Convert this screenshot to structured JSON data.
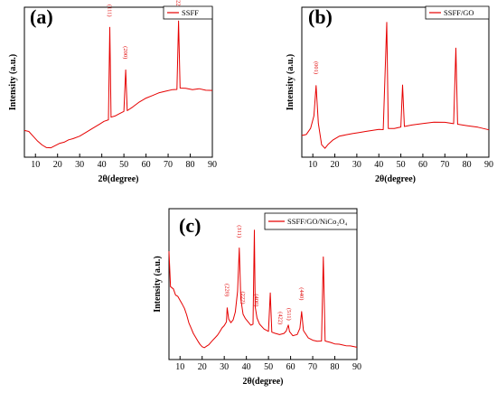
{
  "chart_data": [
    {
      "type": "line",
      "panel": "(a)",
      "xlabel": "2θ(degree)",
      "ylabel": "Intensity (a.u.)",
      "xlim": [
        5,
        90
      ],
      "xticks": [
        10,
        20,
        30,
        40,
        50,
        60,
        70,
        80,
        90
      ],
      "legend": "top-right",
      "series": [
        {
          "name": "SSFF",
          "color": "#e60000",
          "points": [
            [
              5,
              0.14
            ],
            [
              7,
              0.13
            ],
            [
              9,
              0.09
            ],
            [
              11,
              0.05
            ],
            [
              13,
              0.02
            ],
            [
              15,
              0.0
            ],
            [
              17,
              0.0
            ],
            [
              19,
              0.02
            ],
            [
              21,
              0.04
            ],
            [
              23,
              0.05
            ],
            [
              25,
              0.07
            ],
            [
              27,
              0.08
            ],
            [
              30,
              0.1
            ],
            [
              33,
              0.13
            ],
            [
              36,
              0.16
            ],
            [
              39,
              0.19
            ],
            [
              41,
              0.21
            ],
            [
              43,
              0.22
            ],
            [
              43.6,
              0.95
            ],
            [
              44.2,
              0.24
            ],
            [
              46,
              0.25
            ],
            [
              48,
              0.27
            ],
            [
              50,
              0.29
            ],
            [
              50.8,
              0.62
            ],
            [
              51.5,
              0.3
            ],
            [
              54,
              0.33
            ],
            [
              57,
              0.37
            ],
            [
              60,
              0.4
            ],
            [
              63,
              0.42
            ],
            [
              66,
              0.44
            ],
            [
              69,
              0.45
            ],
            [
              72,
              0.46
            ],
            [
              74,
              0.46
            ],
            [
              74.7,
              1.0
            ],
            [
              75.4,
              0.47
            ],
            [
              78,
              0.47
            ],
            [
              81,
              0.46
            ],
            [
              84,
              0.47
            ],
            [
              87,
              0.46
            ],
            [
              90,
              0.46
            ]
          ]
        }
      ],
      "annotations": [
        {
          "text": "(111)",
          "x": 43.6
        },
        {
          "text": "(200)",
          "x": 50.8
        },
        {
          "text": "(220)",
          "x": 74.7
        }
      ]
    },
    {
      "type": "line",
      "panel": "(b)",
      "xlabel": "2θ(degree)",
      "ylabel": "Intensity (a.u.)",
      "xlim": [
        5,
        90
      ],
      "xticks": [
        10,
        20,
        30,
        40,
        50,
        60,
        70,
        80,
        90
      ],
      "legend": "top-right",
      "series": [
        {
          "name": "SSFF/GO",
          "color": "#e60000",
          "points": [
            [
              5,
              0.1
            ],
            [
              7,
              0.11
            ],
            [
              9,
              0.16
            ],
            [
              10.5,
              0.26
            ],
            [
              11.5,
              0.5
            ],
            [
              12.5,
              0.2
            ],
            [
              14,
              0.03
            ],
            [
              15.5,
              0.0
            ],
            [
              17,
              0.03
            ],
            [
              19,
              0.06
            ],
            [
              22,
              0.09
            ],
            [
              25,
              0.1
            ],
            [
              28,
              0.11
            ],
            [
              31,
              0.12
            ],
            [
              34,
              0.13
            ],
            [
              37,
              0.14
            ],
            [
              40,
              0.15
            ],
            [
              42,
              0.15
            ],
            [
              43.6,
              1.0
            ],
            [
              44.3,
              0.16
            ],
            [
              47,
              0.16
            ],
            [
              50,
              0.17
            ],
            [
              50.8,
              0.5
            ],
            [
              51.6,
              0.17
            ],
            [
              55,
              0.18
            ],
            [
              60,
              0.19
            ],
            [
              65,
              0.2
            ],
            [
              70,
              0.2
            ],
            [
              74,
              0.19
            ],
            [
              75,
              0.79
            ],
            [
              75.8,
              0.19
            ],
            [
              80,
              0.18
            ],
            [
              85,
              0.17
            ],
            [
              90,
              0.15
            ]
          ]
        }
      ],
      "annotations": [
        {
          "text": "(001)",
          "x": 11.5
        }
      ]
    },
    {
      "type": "line",
      "panel": "(c)",
      "xlabel": "2θ(degree)",
      "ylabel": "Intensity (a.u.)",
      "xlim": [
        5,
        90
      ],
      "xticks": [
        10,
        20,
        30,
        40,
        50,
        60,
        70,
        80,
        90
      ],
      "legend": "top-right",
      "series": [
        {
          "name": "SSFF/GO/NiCo₂O₄",
          "color": "#e60000",
          "points": [
            [
              5,
              0.78
            ],
            [
              5.7,
              0.5
            ],
            [
              7,
              0.48
            ],
            [
              8,
              0.43
            ],
            [
              9,
              0.42
            ],
            [
              10,
              0.39
            ],
            [
              11,
              0.36
            ],
            [
              12,
              0.33
            ],
            [
              13,
              0.28
            ],
            [
              14,
              0.22
            ],
            [
              15,
              0.18
            ],
            [
              16,
              0.14
            ],
            [
              17,
              0.11
            ],
            [
              18,
              0.08
            ],
            [
              19,
              0.05
            ],
            [
              20,
              0.03
            ],
            [
              21,
              0.02
            ],
            [
              22,
              0.03
            ],
            [
              23,
              0.04
            ],
            [
              24,
              0.06
            ],
            [
              25,
              0.08
            ],
            [
              26,
              0.1
            ],
            [
              27,
              0.12
            ],
            [
              28,
              0.15
            ],
            [
              29,
              0.18
            ],
            [
              30,
              0.2
            ],
            [
              31,
              0.23
            ],
            [
              31.3,
              0.34
            ],
            [
              32,
              0.25
            ],
            [
              33,
              0.22
            ],
            [
              34,
              0.24
            ],
            [
              35,
              0.3
            ],
            [
              36,
              0.46
            ],
            [
              36.8,
              0.8
            ],
            [
              37.5,
              0.4
            ],
            [
              38.5,
              0.28
            ],
            [
              39.5,
              0.25
            ],
            [
              41,
              0.22
            ],
            [
              42,
              0.2
            ],
            [
              43,
              0.21
            ],
            [
              43.6,
              0.95
            ],
            [
              44,
              0.35
            ],
            [
              44.8,
              0.26
            ],
            [
              46,
              0.21
            ],
            [
              48,
              0.17
            ],
            [
              50,
              0.15
            ],
            [
              50.8,
              0.45
            ],
            [
              51.5,
              0.14
            ],
            [
              53,
              0.13
            ],
            [
              55,
              0.12
            ],
            [
              57,
              0.13
            ],
            [
              58,
              0.15
            ],
            [
              59,
              0.2
            ],
            [
              59.5,
              0.15
            ],
            [
              61,
              0.12
            ],
            [
              63,
              0.13
            ],
            [
              64.2,
              0.18
            ],
            [
              65,
              0.31
            ],
            [
              65.8,
              0.16
            ],
            [
              68,
              0.1
            ],
            [
              70,
              0.08
            ],
            [
              72,
              0.07
            ],
            [
              74,
              0.07
            ],
            [
              74.8,
              0.73
            ],
            [
              75.6,
              0.07
            ],
            [
              78,
              0.06
            ],
            [
              80,
              0.05
            ],
            [
              82,
              0.05
            ],
            [
              85,
              0.04
            ],
            [
              87,
              0.04
            ],
            [
              90,
              0.03
            ]
          ]
        }
      ],
      "annotations": [
        {
          "text": "(220)",
          "x": 31.3
        },
        {
          "text": "(311)",
          "x": 36.8
        },
        {
          "text": "(222)",
          "x": 38.6
        },
        {
          "text": "(400)",
          "x": 44.6
        },
        {
          "text": "(422)",
          "x": 55.5
        },
        {
          "text": "(511)",
          "x": 59.3
        },
        {
          "text": "(440)",
          "x": 65.0
        }
      ]
    }
  ]
}
